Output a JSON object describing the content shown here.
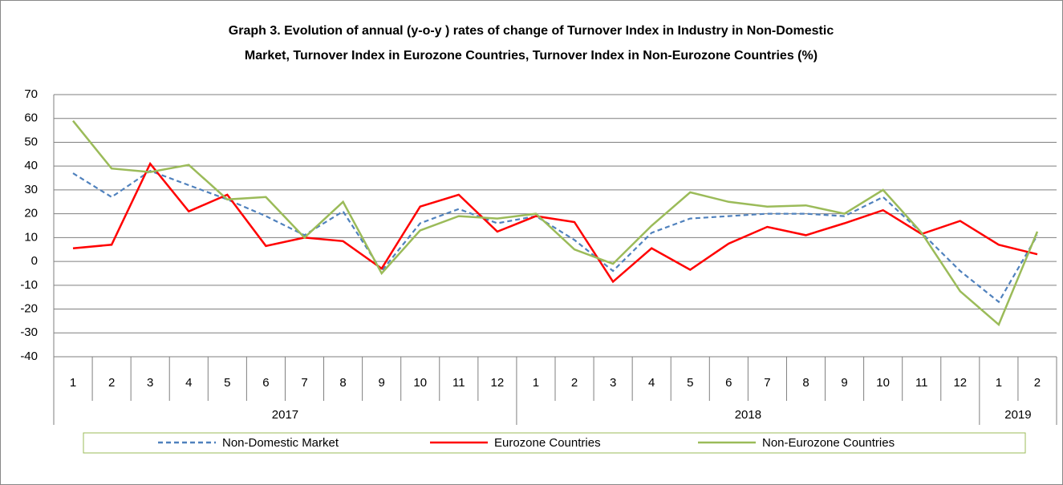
{
  "chart_data": {
    "type": "line",
    "title": [
      "Graph 3. Evolution of annual (y-o-y ) rates  of change of Turnover Index in Industry  in Non-Domestic",
      "Market,  Turnover Index in Eurozone Countries, Turnover Index in Non-Eurozone Countries (%)"
    ],
    "category_groups": [
      {
        "name": "2017",
        "categories": [
          "1",
          "2",
          "3",
          "4",
          "5",
          "6",
          "7",
          "8",
          "9",
          "10",
          "11",
          "12"
        ]
      },
      {
        "name": "2018",
        "categories": [
          "1",
          "2",
          "3",
          "4",
          "5",
          "6",
          "7",
          "8",
          "9",
          "10",
          "11",
          "12"
        ]
      },
      {
        "name": "2019",
        "categories": [
          "1",
          "2"
        ]
      }
    ],
    "series": [
      {
        "name": "Non-Domestic Market",
        "color": "#4f81bd",
        "dashed": true,
        "values": [
          37,
          27,
          38,
          32,
          26,
          19,
          11,
          21,
          -4,
          16,
          22,
          16,
          19,
          9,
          -4,
          12,
          18,
          19,
          20,
          20,
          19,
          27,
          12,
          -4,
          -17,
          11
        ]
      },
      {
        "name": "Eurozone Countries",
        "color": "#ff0000",
        "dashed": false,
        "values": [
          5.5,
          7,
          41,
          21,
          28,
          6.5,
          10,
          8.5,
          -3,
          23,
          28,
          12.5,
          19,
          16.5,
          -8.5,
          5.5,
          -3.5,
          7.5,
          14.5,
          11,
          16,
          21.5,
          11.5,
          17,
          7,
          3
        ]
      },
      {
        "name": "Non-Eurozone Countries",
        "color": "#9bbb59",
        "dashed": false,
        "values": [
          59,
          39,
          37.5,
          40.5,
          26,
          27,
          10,
          25,
          -5,
          13,
          19,
          18,
          20,
          5,
          -1,
          15,
          29,
          25,
          23,
          23.5,
          20,
          30,
          12,
          -12.5,
          -26.5,
          12.5
        ]
      }
    ],
    "ylim": [
      -40,
      70
    ],
    "yticks": [
      -40,
      -30,
      -20,
      -10,
      0,
      10,
      20,
      30,
      40,
      50,
      60,
      70
    ],
    "grid": true,
    "legend": "bottom"
  }
}
